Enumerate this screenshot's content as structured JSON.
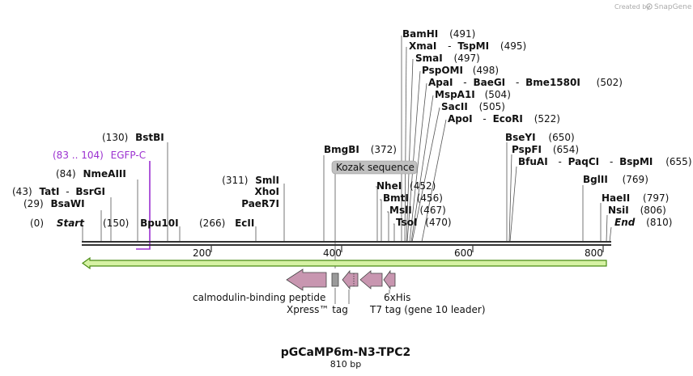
{
  "credit": {
    "text": "Created by",
    "brand": "SnapGene"
  },
  "map": {
    "name": "pGCaMP6m-N3-TPC2",
    "length_label": "810 bp",
    "ruler_ticks": [
      "200",
      "400",
      "600",
      "800"
    ]
  },
  "sites": {
    "start": {
      "pos": "(0)",
      "name": "Start"
    },
    "end": {
      "name": "End",
      "pos": "(810)"
    },
    "bsawi": {
      "pos": "(29)",
      "name": "BsaWI"
    },
    "tati": {
      "pos": "(43)",
      "name": "TatI",
      "sep": "-",
      "name2": "BsrGI"
    },
    "nmeaiii": {
      "pos": "(84)",
      "name": "NmeAIII"
    },
    "egfp": {
      "pos": "(83 .. 104)",
      "name": "EGFP-C"
    },
    "bstbi": {
      "pos": "(130)",
      "name": "BstBI"
    },
    "bpu10i": {
      "pos": "(150)",
      "name": "Bpu10I"
    },
    "ecli": {
      "pos": "(266)",
      "name": "EcII"
    },
    "smli": {
      "pos": "(311)",
      "name": "SmlI"
    },
    "xhoi": {
      "name": "XhoI"
    },
    "paer7i": {
      "name": "PaeR7I"
    },
    "bmgbi": {
      "name": "BmgBI",
      "pos": "(372)"
    },
    "kozak": {
      "name": "Kozak sequence"
    },
    "nhei": {
      "name": "NheI",
      "pos": "(452)"
    },
    "bmti": {
      "name": "BmtI",
      "pos": "(456)"
    },
    "msli": {
      "name": "MslI",
      "pos": "(467)"
    },
    "tsoi": {
      "name": "TsoI",
      "pos": "(470)"
    },
    "bamhi": {
      "name": "BamHI",
      "pos": "(491)"
    },
    "xmai": {
      "name": "XmaI",
      "sep": "-",
      "name2": "TspMI",
      "pos": "(495)"
    },
    "smai": {
      "name": "SmaI",
      "pos": "(497)"
    },
    "pspomi": {
      "name": "PspOMI",
      "pos": "(498)"
    },
    "apai": {
      "name": "ApaI",
      "sep": "-",
      "name2": "BaeGI",
      "sep2": "-",
      "name3": "Bme1580I",
      "pos": "(502)"
    },
    "mspa1i": {
      "name": "MspA1I",
      "pos": "(504)"
    },
    "sacii": {
      "name": "SacII",
      "pos": "(505)"
    },
    "apoi": {
      "name": "ApoI",
      "sep": "-",
      "name2": "EcoRI",
      "pos": "(522)"
    },
    "bseyi": {
      "name": "BseYI",
      "pos": "(650)"
    },
    "pspfi": {
      "name": "PspFI",
      "pos": "(654)"
    },
    "bfuai": {
      "name": "BfuAI",
      "sep": "-",
      "name2": "PaqCI",
      "sep2": "-",
      "name3": "BspMI",
      "pos": "(655)"
    },
    "bglii": {
      "name": "BglII",
      "pos": "(769)"
    },
    "haeii": {
      "name": "HaeII",
      "pos": "(797)"
    },
    "nsii": {
      "name": "NsiI",
      "pos": "(806)"
    }
  },
  "features": {
    "calmodulin": "calmodulin-binding peptide",
    "xpress": "Xpress™ tag",
    "his": "6xHis",
    "t7": "T7 tag (gene 10 leader)"
  },
  "colors": {
    "feature_fill": "#c896b0",
    "orf_fill": "#d6f2a4",
    "orf_stroke": "#4a8c14",
    "egfp": "#9b30d0",
    "kozak_fill": "#c0c0c0"
  }
}
